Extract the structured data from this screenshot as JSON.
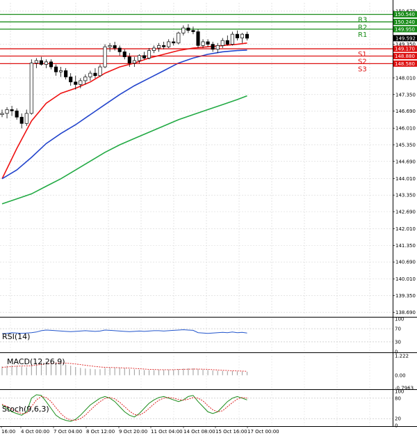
{
  "chart_data": {
    "type": "candlestick",
    "main": {
      "ylim": [
        138.59,
        151.0
      ],
      "yticks": [
        "150.670",
        "149.350",
        "148.010",
        "147.350",
        "146.690",
        "146.010",
        "145.350",
        "144.690",
        "144.010",
        "143.350",
        "142.690",
        "142.010",
        "141.350",
        "140.690",
        "140.010",
        "139.350",
        "138.690"
      ],
      "ytick_values": [
        150.67,
        149.35,
        148.01,
        147.35,
        146.69,
        146.01,
        145.35,
        144.69,
        144.01,
        143.35,
        142.69,
        142.01,
        141.35,
        140.69,
        140.01,
        139.35,
        138.69
      ],
      "current_price": "149.592",
      "current_value": 149.592,
      "levels": [
        {
          "name": "R3",
          "value": 150.54,
          "label": "150.540",
          "color": "#1a8c1a"
        },
        {
          "name": "R2",
          "value": 150.24,
          "label": "150.240",
          "color": "#1a8c1a"
        },
        {
          "name": "R1",
          "value": 149.95,
          "label": "149.950",
          "color": "#1a8c1a"
        },
        {
          "name": "S1",
          "value": 149.17,
          "label": "149.170",
          "color": "#dd1111"
        },
        {
          "name": "S2",
          "value": 148.88,
          "label": "148.880",
          "color": "#dd1111"
        },
        {
          "name": "S3",
          "value": 148.58,
          "label": "148.580",
          "color": "#dd1111"
        }
      ],
      "xlabels": [
        "16:00",
        "4 Oct 00:00",
        "7 Oct 04:00",
        "8 Oct 12:00",
        "9 Oct 20:00",
        "11 Oct 04:00",
        "14 Oct 08:00",
        "15 Oct 16:00",
        "17 Oct 00:00"
      ],
      "candles": [
        {
          "o": 146.55,
          "h": 146.75,
          "l": 146.45,
          "c": 146.6
        },
        {
          "o": 146.6,
          "h": 146.85,
          "l": 146.4,
          "c": 146.75
        },
        {
          "o": 146.75,
          "h": 146.9,
          "l": 146.5,
          "c": 146.7
        },
        {
          "o": 146.7,
          "h": 146.8,
          "l": 146.35,
          "c": 146.45
        },
        {
          "o": 146.45,
          "h": 146.6,
          "l": 146.0,
          "c": 146.2
        },
        {
          "o": 146.2,
          "h": 146.75,
          "l": 146.1,
          "c": 146.6
        },
        {
          "o": 146.6,
          "h": 148.75,
          "l": 146.55,
          "c": 148.6
        },
        {
          "o": 148.6,
          "h": 148.8,
          "l": 148.4,
          "c": 148.7
        },
        {
          "o": 148.7,
          "h": 148.85,
          "l": 148.5,
          "c": 148.55
        },
        {
          "o": 148.55,
          "h": 148.75,
          "l": 148.4,
          "c": 148.65
        },
        {
          "o": 148.65,
          "h": 148.75,
          "l": 148.35,
          "c": 148.45
        },
        {
          "o": 148.45,
          "h": 148.55,
          "l": 148.1,
          "c": 148.25
        },
        {
          "o": 148.25,
          "h": 148.45,
          "l": 148.05,
          "c": 148.3
        },
        {
          "o": 148.3,
          "h": 148.4,
          "l": 147.95,
          "c": 148.05
        },
        {
          "o": 148.05,
          "h": 148.2,
          "l": 147.7,
          "c": 147.85
        },
        {
          "o": 147.85,
          "h": 148.1,
          "l": 147.55,
          "c": 147.75
        },
        {
          "o": 147.75,
          "h": 148.0,
          "l": 147.6,
          "c": 147.9
        },
        {
          "o": 147.9,
          "h": 148.15,
          "l": 147.75,
          "c": 148.05
        },
        {
          "o": 148.05,
          "h": 148.3,
          "l": 147.9,
          "c": 148.2
        },
        {
          "o": 148.2,
          "h": 148.4,
          "l": 148.0,
          "c": 148.1
        },
        {
          "o": 148.1,
          "h": 148.55,
          "l": 148.05,
          "c": 148.45
        },
        {
          "o": 148.45,
          "h": 149.35,
          "l": 148.4,
          "c": 149.25
        },
        {
          "o": 149.25,
          "h": 149.4,
          "l": 149.05,
          "c": 149.3
        },
        {
          "o": 149.3,
          "h": 149.45,
          "l": 149.1,
          "c": 149.2
        },
        {
          "o": 149.2,
          "h": 149.3,
          "l": 148.9,
          "c": 149.05
        },
        {
          "o": 149.05,
          "h": 149.15,
          "l": 148.75,
          "c": 148.85
        },
        {
          "o": 148.85,
          "h": 149.0,
          "l": 148.45,
          "c": 148.6
        },
        {
          "o": 148.6,
          "h": 148.85,
          "l": 148.45,
          "c": 148.7
        },
        {
          "o": 148.7,
          "h": 148.95,
          "l": 148.6,
          "c": 148.9
        },
        {
          "o": 148.9,
          "h": 149.05,
          "l": 148.75,
          "c": 148.8
        },
        {
          "o": 148.8,
          "h": 149.2,
          "l": 148.75,
          "c": 149.1
        },
        {
          "o": 149.1,
          "h": 149.3,
          "l": 149.0,
          "c": 149.2
        },
        {
          "o": 149.2,
          "h": 149.4,
          "l": 149.05,
          "c": 149.3
        },
        {
          "o": 149.3,
          "h": 149.45,
          "l": 149.15,
          "c": 149.25
        },
        {
          "o": 149.25,
          "h": 149.55,
          "l": 149.2,
          "c": 149.45
        },
        {
          "o": 149.45,
          "h": 149.6,
          "l": 149.3,
          "c": 149.4
        },
        {
          "o": 149.4,
          "h": 149.85,
          "l": 149.35,
          "c": 149.8
        },
        {
          "o": 149.8,
          "h": 150.1,
          "l": 149.7,
          "c": 150.0
        },
        {
          "o": 150.0,
          "h": 150.15,
          "l": 149.8,
          "c": 149.9
        },
        {
          "o": 149.9,
          "h": 150.05,
          "l": 149.75,
          "c": 149.85
        },
        {
          "o": 149.85,
          "h": 149.95,
          "l": 149.2,
          "c": 149.3
        },
        {
          "o": 149.3,
          "h": 149.55,
          "l": 149.2,
          "c": 149.45
        },
        {
          "o": 149.45,
          "h": 149.55,
          "l": 149.25,
          "c": 149.35
        },
        {
          "o": 149.35,
          "h": 149.45,
          "l": 149.05,
          "c": 149.15
        },
        {
          "o": 149.15,
          "h": 149.4,
          "l": 149.0,
          "c": 149.3
        },
        {
          "o": 149.3,
          "h": 149.6,
          "l": 149.2,
          "c": 149.5
        },
        {
          "o": 149.5,
          "h": 149.7,
          "l": 149.3,
          "c": 149.35
        },
        {
          "o": 149.35,
          "h": 149.85,
          "l": 149.3,
          "c": 149.75
        },
        {
          "o": 149.75,
          "h": 149.9,
          "l": 149.5,
          "c": 149.6
        },
        {
          "o": 149.6,
          "h": 149.8,
          "l": 149.4,
          "c": 149.75
        },
        {
          "o": 149.75,
          "h": 149.85,
          "l": 149.5,
          "c": 149.59
        }
      ],
      "ma_series": [
        {
          "color": "#ee1111",
          "values": [
            {
              "i": 0,
              "v": 144.0
            },
            {
              "i": 3,
              "v": 145.2
            },
            {
              "i": 6,
              "v": 146.3
            },
            {
              "i": 9,
              "v": 147.0
            },
            {
              "i": 12,
              "v": 147.4
            },
            {
              "i": 15,
              "v": 147.6
            },
            {
              "i": 18,
              "v": 147.85
            },
            {
              "i": 21,
              "v": 148.2
            },
            {
              "i": 24,
              "v": 148.45
            },
            {
              "i": 27,
              "v": 148.6
            },
            {
              "i": 30,
              "v": 148.8
            },
            {
              "i": 33,
              "v": 148.95
            },
            {
              "i": 36,
              "v": 149.1
            },
            {
              "i": 39,
              "v": 149.2
            },
            {
              "i": 42,
              "v": 149.25
            },
            {
              "i": 45,
              "v": 149.3
            },
            {
              "i": 48,
              "v": 149.35
            },
            {
              "i": 50,
              "v": 149.4
            }
          ]
        },
        {
          "color": "#2244cc",
          "values": [
            {
              "i": 0,
              "v": 144.0
            },
            {
              "i": 3,
              "v": 144.35
            },
            {
              "i": 6,
              "v": 144.85
            },
            {
              "i": 9,
              "v": 145.4
            },
            {
              "i": 12,
              "v": 145.8
            },
            {
              "i": 15,
              "v": 146.15
            },
            {
              "i": 18,
              "v": 146.55
            },
            {
              "i": 21,
              "v": 146.95
            },
            {
              "i": 24,
              "v": 147.35
            },
            {
              "i": 27,
              "v": 147.7
            },
            {
              "i": 30,
              "v": 148.0
            },
            {
              "i": 33,
              "v": 148.3
            },
            {
              "i": 36,
              "v": 148.6
            },
            {
              "i": 39,
              "v": 148.8
            },
            {
              "i": 42,
              "v": 148.95
            },
            {
              "i": 45,
              "v": 149.05
            },
            {
              "i": 48,
              "v": 149.1
            },
            {
              "i": 50,
              "v": 149.12
            }
          ]
        },
        {
          "color": "#22aa44",
          "values": [
            {
              "i": 0,
              "v": 143.0
            },
            {
              "i": 3,
              "v": 143.2
            },
            {
              "i": 6,
              "v": 143.4
            },
            {
              "i": 9,
              "v": 143.7
            },
            {
              "i": 12,
              "v": 144.0
            },
            {
              "i": 15,
              "v": 144.35
            },
            {
              "i": 18,
              "v": 144.7
            },
            {
              "i": 21,
              "v": 145.05
            },
            {
              "i": 24,
              "v": 145.35
            },
            {
              "i": 27,
              "v": 145.6
            },
            {
              "i": 30,
              "v": 145.85
            },
            {
              "i": 33,
              "v": 146.1
            },
            {
              "i": 36,
              "v": 146.35
            },
            {
              "i": 39,
              "v": 146.55
            },
            {
              "i": 42,
              "v": 146.75
            },
            {
              "i": 45,
              "v": 146.95
            },
            {
              "i": 48,
              "v": 147.15
            },
            {
              "i": 50,
              "v": 147.3
            }
          ]
        }
      ]
    },
    "rsi": {
      "label": "RSI(14)",
      "ylim": [
        0,
        100
      ],
      "yticks": [
        "100",
        "70",
        "30",
        "0"
      ],
      "ytick_values": [
        100,
        70,
        30,
        0
      ],
      "color": "#2255cc",
      "values": [
        55,
        56,
        58,
        57,
        56,
        57,
        58,
        60,
        64,
        66,
        65,
        64,
        63,
        62,
        61,
        62,
        63,
        64,
        63,
        62,
        63,
        66,
        65,
        64,
        63,
        62,
        61,
        62,
        63,
        62,
        63,
        64,
        64,
        63,
        64,
        65,
        66,
        67,
        66,
        65,
        58,
        57,
        56,
        57,
        58,
        59,
        58,
        60,
        58,
        59,
        57
      ]
    },
    "macd": {
      "label": "MACD(12,26,9)",
      "ylim": [
        -0.7963,
        1.222
      ],
      "yticks": [
        "1.222",
        "0.00",
        "-0.7963"
      ],
      "ytick_values": [
        1.222,
        0.0,
        -0.7963
      ],
      "hist_color": "#999999",
      "signal_color": "#dd2222",
      "hist": [
        0.55,
        0.6,
        0.62,
        0.6,
        0.55,
        0.5,
        0.7,
        0.8,
        0.85,
        0.87,
        0.85,
        0.8,
        0.75,
        0.68,
        0.6,
        0.52,
        0.46,
        0.42,
        0.4,
        0.38,
        0.38,
        0.45,
        0.48,
        0.5,
        0.48,
        0.45,
        0.4,
        0.37,
        0.35,
        0.33,
        0.32,
        0.33,
        0.34,
        0.34,
        0.35,
        0.36,
        0.38,
        0.42,
        0.44,
        0.44,
        0.38,
        0.36,
        0.33,
        0.3,
        0.28,
        0.27,
        0.25,
        0.26,
        0.24,
        0.23,
        0.22
      ],
      "signal": [
        0.5,
        0.52,
        0.55,
        0.57,
        0.58,
        0.58,
        0.6,
        0.64,
        0.68,
        0.72,
        0.75,
        0.77,
        0.77,
        0.76,
        0.74,
        0.71,
        0.67,
        0.63,
        0.59,
        0.55,
        0.52,
        0.5,
        0.49,
        0.48,
        0.47,
        0.46,
        0.45,
        0.43,
        0.41,
        0.39,
        0.37,
        0.36,
        0.35,
        0.35,
        0.35,
        0.35,
        0.36,
        0.37,
        0.38,
        0.39,
        0.39,
        0.38,
        0.37,
        0.35,
        0.33,
        0.31,
        0.3,
        0.28,
        0.27,
        0.26,
        0.25
      ]
    },
    "stoch": {
      "label": "Stoch(9,6,3)",
      "ylim": [
        0,
        100
      ],
      "yticks": [
        "100",
        "80",
        "20",
        "0"
      ],
      "ytick_values": [
        100,
        80,
        20,
        0
      ],
      "main_color": "#1a8c1a",
      "signal_color": "#dd2222",
      "main": [
        60,
        50,
        40,
        35,
        30,
        40,
        80,
        90,
        88,
        70,
        50,
        30,
        20,
        15,
        12,
        18,
        30,
        45,
        60,
        70,
        80,
        85,
        80,
        70,
        55,
        40,
        30,
        25,
        35,
        50,
        65,
        75,
        82,
        85,
        80,
        75,
        70,
        75,
        85,
        88,
        70,
        55,
        40,
        35,
        40,
        55,
        70,
        80,
        85,
        80,
        75
      ],
      "signal": [
        62,
        55,
        48,
        40,
        35,
        36,
        55,
        75,
        85,
        82,
        70,
        52,
        35,
        22,
        16,
        15,
        20,
        30,
        45,
        58,
        70,
        79,
        82,
        78,
        68,
        55,
        42,
        32,
        30,
        38,
        50,
        63,
        74,
        80,
        82,
        80,
        76,
        74,
        77,
        82,
        80,
        72,
        58,
        46,
        40,
        43,
        55,
        67,
        77,
        82,
        80
      ]
    }
  }
}
